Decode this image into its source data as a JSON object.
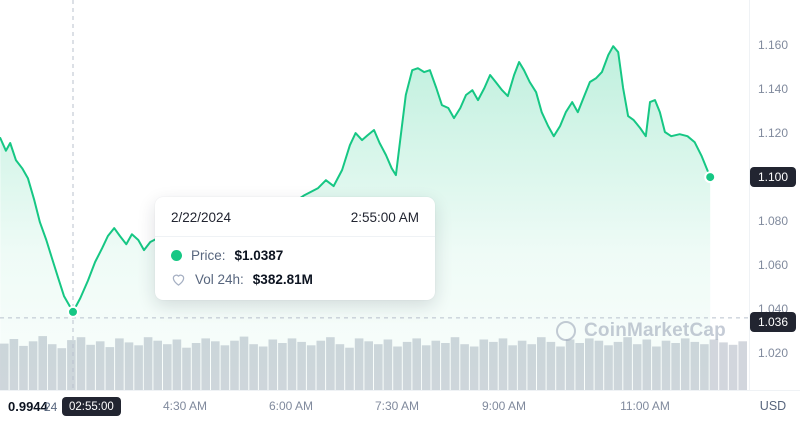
{
  "meta": {
    "unit": "USD"
  },
  "watermark": {
    "label": "CoinMarketCap"
  },
  "tooltip": {
    "date": "2/22/2024",
    "time": "2:55:00 AM",
    "price_label": "Price:",
    "price_value": "$1.0387",
    "vol_label": "Vol 24h:",
    "vol_value": "$382.81M"
  },
  "chart_data": {
    "type": "area",
    "title": "",
    "ylabel": "USD",
    "grid": "off",
    "x_domain": [
      1.886,
      12.511
    ],
    "y_domain": [
      1.0032,
      1.1805
    ],
    "low_label": "0.9944",
    "last_price": {
      "value": 1.1,
      "label": "1.100"
    },
    "crosshair": {
      "t": 2.917,
      "price": 1.0387,
      "price_line": 1.036,
      "price_line_label": "1.036",
      "time_label": "02:55:00",
      "date_partial": "24"
    },
    "y_ticks": [
      {
        "value": 1.16,
        "label": "1.160"
      },
      {
        "value": 1.14,
        "label": "1.140"
      },
      {
        "value": 1.12,
        "label": "1.120"
      },
      {
        "value": 1.08,
        "label": "1.080"
      },
      {
        "value": 1.06,
        "label": "1.060"
      },
      {
        "value": 1.04,
        "label": "1.040"
      },
      {
        "value": 1.02,
        "label": "1.020"
      }
    ],
    "x_ticks": [
      {
        "hour": 4.5,
        "label": "4:30 AM"
      },
      {
        "hour": 6.0,
        "label": "6:00 AM"
      },
      {
        "hour": 7.5,
        "label": "7:30 AM"
      },
      {
        "hour": 9.0,
        "label": "9:00 AM"
      },
      {
        "hour": 11.0,
        "label": "11:00 AM"
      }
    ],
    "series": [
      {
        "name": "Price",
        "points": [
          [
            1.89,
            1.1177
          ],
          [
            1.97,
            1.112
          ],
          [
            2.03,
            1.1155
          ],
          [
            2.11,
            1.1077
          ],
          [
            2.2,
            1.104
          ],
          [
            2.28,
            1.0995
          ],
          [
            2.37,
            1.0895
          ],
          [
            2.45,
            1.0795
          ],
          [
            2.54,
            1.0714
          ],
          [
            2.62,
            1.0632
          ],
          [
            2.71,
            1.054
          ],
          [
            2.79,
            1.0459
          ],
          [
            2.917,
            1.0387
          ],
          [
            3.02,
            1.045
          ],
          [
            3.13,
            1.053
          ],
          [
            3.23,
            1.0614
          ],
          [
            3.33,
            1.0677
          ],
          [
            3.41,
            1.0732
          ],
          [
            3.5,
            1.0768
          ],
          [
            3.58,
            1.0732
          ],
          [
            3.67,
            1.0695
          ],
          [
            3.75,
            1.074
          ],
          [
            3.84,
            1.0714
          ],
          [
            3.92,
            1.0668
          ],
          [
            4.01,
            1.0705
          ],
          [
            4.12,
            1.0723
          ],
          [
            4.29,
            1.0714
          ],
          [
            4.5,
            1.067
          ],
          [
            4.71,
            1.069
          ],
          [
            4.92,
            1.0759
          ],
          [
            5.14,
            1.0736
          ],
          [
            5.35,
            1.0782
          ],
          [
            5.56,
            1.0827
          ],
          [
            5.77,
            1.085
          ],
          [
            5.98,
            1.0873
          ],
          [
            6.19,
            1.0918
          ],
          [
            6.38,
            1.095
          ],
          [
            6.49,
            1.0986
          ],
          [
            6.6,
            1.0959
          ],
          [
            6.72,
            1.1032
          ],
          [
            6.83,
            1.1145
          ],
          [
            6.91,
            1.12
          ],
          [
            7.0,
            1.1168
          ],
          [
            7.08,
            1.119
          ],
          [
            7.17,
            1.1214
          ],
          [
            7.25,
            1.1155
          ],
          [
            7.34,
            1.11
          ],
          [
            7.42,
            1.104
          ],
          [
            7.48,
            1.1009
          ],
          [
            7.54,
            1.1168
          ],
          [
            7.62,
            1.1373
          ],
          [
            7.71,
            1.1486
          ],
          [
            7.79,
            1.1495
          ],
          [
            7.88,
            1.1477
          ],
          [
            7.96,
            1.1486
          ],
          [
            8.05,
            1.1405
          ],
          [
            8.13,
            1.1327
          ],
          [
            8.22,
            1.1314
          ],
          [
            8.3,
            1.1268
          ],
          [
            8.39,
            1.1314
          ],
          [
            8.47,
            1.1373
          ],
          [
            8.56,
            1.1395
          ],
          [
            8.64,
            1.135
          ],
          [
            8.73,
            1.1405
          ],
          [
            8.81,
            1.1464
          ],
          [
            8.89,
            1.1432
          ],
          [
            8.98,
            1.1395
          ],
          [
            9.06,
            1.1368
          ],
          [
            9.15,
            1.1464
          ],
          [
            9.22,
            1.1523
          ],
          [
            9.29,
            1.1486
          ],
          [
            9.37,
            1.1432
          ],
          [
            9.46,
            1.1386
          ],
          [
            9.54,
            1.1295
          ],
          [
            9.63,
            1.1232
          ],
          [
            9.71,
            1.1186
          ],
          [
            9.8,
            1.1232
          ],
          [
            9.88,
            1.1295
          ],
          [
            9.97,
            1.1341
          ],
          [
            10.05,
            1.1295
          ],
          [
            10.14,
            1.1368
          ],
          [
            10.22,
            1.1432
          ],
          [
            10.31,
            1.145
          ],
          [
            10.39,
            1.1477
          ],
          [
            10.48,
            1.1555
          ],
          [
            10.55,
            1.1595
          ],
          [
            10.62,
            1.1568
          ],
          [
            10.69,
            1.1405
          ],
          [
            10.76,
            1.1277
          ],
          [
            10.84,
            1.1259
          ],
          [
            10.93,
            1.1223
          ],
          [
            11.01,
            1.1186
          ],
          [
            11.07,
            1.1341
          ],
          [
            11.14,
            1.135
          ],
          [
            11.21,
            1.1295
          ],
          [
            11.28,
            1.1205
          ],
          [
            11.37,
            1.1186
          ],
          [
            11.49,
            1.1195
          ],
          [
            11.6,
            1.1186
          ],
          [
            11.7,
            1.1159
          ],
          [
            11.8,
            1.1095
          ],
          [
            11.92,
            1.1
          ]
        ]
      }
    ],
    "volume_profile": [
      0.8,
      0.88,
      0.76,
      0.84,
      0.93,
      0.79,
      0.72,
      0.86,
      0.91,
      0.78,
      0.84,
      0.74,
      0.89,
      0.82,
      0.77,
      0.91,
      0.85,
      0.79,
      0.87,
      0.73,
      0.81,
      0.89,
      0.84,
      0.77,
      0.85,
      0.92,
      0.79,
      0.75,
      0.87,
      0.81,
      0.89,
      0.83,
      0.77,
      0.85,
      0.91,
      0.79,
      0.73,
      0.89,
      0.84,
      0.79,
      0.87,
      0.75,
      0.83,
      0.89,
      0.77,
      0.85,
      0.81,
      0.91,
      0.79,
      0.75,
      0.87,
      0.83,
      0.89,
      0.77,
      0.85,
      0.79,
      0.91,
      0.83,
      0.75,
      0.87,
      0.81,
      0.89,
      0.85,
      0.77,
      0.83,
      0.91,
      0.79,
      0.87,
      0.75,
      0.85,
      0.81,
      0.89,
      0.83,
      0.79,
      0.87,
      0.82,
      0.78,
      0.84
    ],
    "colors": {
      "line": "#16c784",
      "area_top": "rgba(22,199,132,0.32)",
      "volume": "#d2d6dd",
      "badge": "#222531",
      "crosshair": "#b9c1ce"
    }
  }
}
